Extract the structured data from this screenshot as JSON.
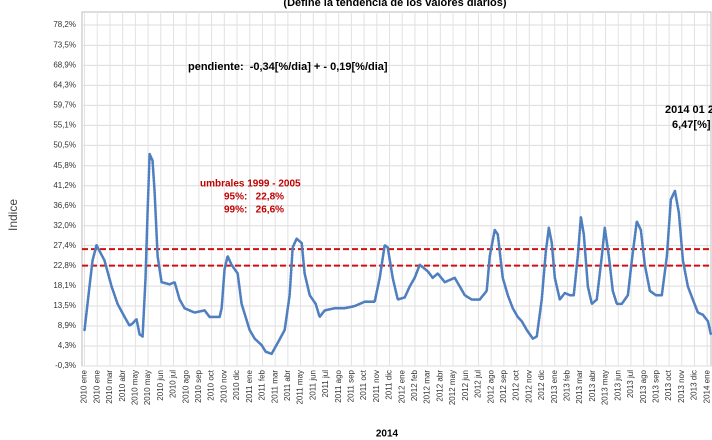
{
  "chart_data": {
    "type": "line",
    "title": "(Define la tendencia de los valores diarios)",
    "y_label": "Indice",
    "x_label": "2014",
    "annotations": [
      "pendiente:  -0,34[%/dia] + - 0,19[%/dia]",
      "umbrales 1999 - 2005",
      "95%:   22,8%",
      "99%:   26,6%",
      "2014 01 2",
      "6,47[%]"
    ],
    "reference_lines": [
      22.8,
      26.6
    ],
    "reference_color": "#d01010",
    "grid": true,
    "xlim": [
      -0.2,
      49.3
    ],
    "ylim": [
      -0.3,
      78.2
    ],
    "yticks": [
      {
        "value": -0.3,
        "label": "-0,3%"
      },
      {
        "value": 4.3,
        "label": "4,3%"
      },
      {
        "value": 8.9,
        "label": "8,9%"
      },
      {
        "value": 13.5,
        "label": "13,5%"
      },
      {
        "value": 18.1,
        "label": "18,1%"
      },
      {
        "value": 22.8,
        "label": "22,8%"
      },
      {
        "value": 27.4,
        "label": "27,4%"
      },
      {
        "value": 32.0,
        "label": "32,0%"
      },
      {
        "value": 36.6,
        "label": "36,6%"
      },
      {
        "value": 41.2,
        "label": "41,2%"
      },
      {
        "value": 45.8,
        "label": "45,8%"
      },
      {
        "value": 50.5,
        "label": "50,5%"
      },
      {
        "value": 55.1,
        "label": "55,1%"
      },
      {
        "value": 59.7,
        "label": "59,7%"
      },
      {
        "value": 64.3,
        "label": "64,3%"
      },
      {
        "value": 68.9,
        "label": "68,9%"
      },
      {
        "value": 73.5,
        "label": "73,5%"
      },
      {
        "value": 78.2,
        "label": "78,2%"
      }
    ],
    "xticks": [
      {
        "value": 0,
        "label": "2010 ene"
      },
      {
        "value": 1,
        "label": "2010 ene"
      },
      {
        "value": 2,
        "label": "2010 mar"
      },
      {
        "value": 3,
        "label": "2010 abr"
      },
      {
        "value": 4,
        "label": "2010 may"
      },
      {
        "value": 5,
        "label": "2010 may"
      },
      {
        "value": 6,
        "label": "2010 jun"
      },
      {
        "value": 7,
        "label": "2010 jul"
      },
      {
        "value": 8,
        "label": "2010 ago"
      },
      {
        "value": 9,
        "label": "2010 sep"
      },
      {
        "value": 10,
        "label": "2010 oct"
      },
      {
        "value": 11,
        "label": "2010 nov"
      },
      {
        "value": 12,
        "label": "2010 dic"
      },
      {
        "value": 13,
        "label": "2011 ene"
      },
      {
        "value": 14,
        "label": "2011 feb"
      },
      {
        "value": 15,
        "label": "2011 mar"
      },
      {
        "value": 16,
        "label": "2011 abr"
      },
      {
        "value": 17,
        "label": "2011 may"
      },
      {
        "value": 18,
        "label": "2011 jun"
      },
      {
        "value": 19,
        "label": "2011 jul"
      },
      {
        "value": 20,
        "label": "2011 ago"
      },
      {
        "value": 21,
        "label": "2011 sep"
      },
      {
        "value": 22,
        "label": "2011 oct"
      },
      {
        "value": 23,
        "label": "2011 nov"
      },
      {
        "value": 24,
        "label": "2011 dic"
      },
      {
        "value": 25,
        "label": "2012 ene"
      },
      {
        "value": 26,
        "label": "2012 feb"
      },
      {
        "value": 27,
        "label": "2012 mar"
      },
      {
        "value": 28,
        "label": "2012 abr"
      },
      {
        "value": 29,
        "label": "2012 may"
      },
      {
        "value": 30,
        "label": "2012 jun"
      },
      {
        "value": 31,
        "label": "2012 jul"
      },
      {
        "value": 32,
        "label": "2012 ago"
      },
      {
        "value": 33,
        "label": "2012 sep"
      },
      {
        "value": 34,
        "label": "2012 oct"
      },
      {
        "value": 35,
        "label": "2012 nov"
      },
      {
        "value": 36,
        "label": "2012 dic"
      },
      {
        "value": 37,
        "label": "2013 ene"
      },
      {
        "value": 38,
        "label": "2013 feb"
      },
      {
        "value": 39,
        "label": "2013 mar"
      },
      {
        "value": 40,
        "label": "2013 abr"
      },
      {
        "value": 41,
        "label": "2013 may"
      },
      {
        "value": 42,
        "label": "2013 jun"
      },
      {
        "value": 43,
        "label": "2013 jul"
      },
      {
        "value": 44,
        "label": "2013 ago"
      },
      {
        "value": 45,
        "label": "2013 sep"
      },
      {
        "value": 46,
        "label": "2013 oct"
      },
      {
        "value": 47,
        "label": "2013 nov"
      },
      {
        "value": 48,
        "label": "2013 dic"
      },
      {
        "value": 49,
        "label": "2014 ene"
      }
    ],
    "series": [
      {
        "color": "#4f7fbf",
        "x": [
          0,
          0.39,
          0.63,
          0.94,
          1.57,
          2.13,
          2.6,
          3.15,
          3.54,
          3.78,
          4.09,
          4.33,
          4.57,
          4.8,
          4.96,
          5.12,
          5.35,
          5.51,
          5.75,
          6.06,
          6.69,
          7.09,
          7.48,
          7.87,
          8.66,
          9.45,
          9.84,
          10.63,
          10.79,
          11.02,
          11.26,
          11.57,
          12.05,
          12.36,
          12.99,
          13.39,
          13.94,
          14.25,
          14.72,
          15.2,
          15.75,
          16.14,
          16.38,
          16.69,
          17.09,
          17.32,
          17.72,
          18.19,
          18.5,
          18.9,
          19.69,
          20.47,
          21.26,
          22.05,
          22.83,
          23.23,
          23.62,
          23.86,
          24.25,
          24.65,
          25.2,
          25.59,
          25.98,
          26.38,
          27.01,
          27.4,
          27.8,
          28.35,
          29.13,
          29.53,
          29.92,
          30.47,
          31.1,
          31.65,
          31.89,
          32.28,
          32.52,
          32.91,
          33.31,
          33.7,
          34.09,
          34.41,
          34.8,
          35.28,
          35.59,
          35.98,
          36.3,
          36.54,
          36.77,
          37.01,
          37.4,
          37.8,
          38.19,
          38.5,
          38.82,
          39.06,
          39.29,
          39.61,
          39.92,
          40.31,
          40.71,
          40.94,
          41.26,
          41.57,
          41.89,
          42.28,
          42.76,
          43.07,
          43.46,
          43.78,
          44.09,
          44.49,
          44.96,
          45.43,
          45.83,
          46.14,
          46.46,
          46.77,
          47.09,
          47.48,
          47.87,
          48.27,
          48.66,
          49.06,
          49.29
        ],
        "values": [
          8,
          18,
          24,
          27.5,
          24,
          18,
          14,
          11,
          9,
          9.5,
          10.5,
          7,
          6.5,
          20,
          35,
          48.5,
          47,
          40,
          25,
          19,
          18.5,
          19,
          15,
          13,
          12,
          12.5,
          11,
          11,
          13,
          22,
          25,
          23,
          21,
          14,
          8,
          6,
          4.5,
          3,
          2.5,
          5,
          8,
          16,
          27,
          29,
          28,
          21,
          16,
          14,
          11,
          12.5,
          13,
          13,
          13.5,
          14.5,
          14.5,
          20,
          27.5,
          27,
          20,
          15,
          15.5,
          18,
          20,
          23,
          21.5,
          20,
          21,
          19,
          20,
          18,
          16,
          15,
          15,
          17,
          25,
          31,
          30,
          20,
          16,
          13,
          11,
          10,
          8,
          6,
          6.5,
          15,
          26,
          31.5,
          28,
          20,
          15,
          16.5,
          16,
          16,
          25,
          34,
          30,
          18,
          14,
          15,
          25,
          31.5,
          25,
          17,
          14,
          14,
          16,
          24,
          33,
          31,
          23,
          17,
          16,
          16,
          25,
          38,
          40,
          35,
          24,
          18,
          15,
          12,
          11.5,
          10,
          7
        ]
      }
    ]
  }
}
